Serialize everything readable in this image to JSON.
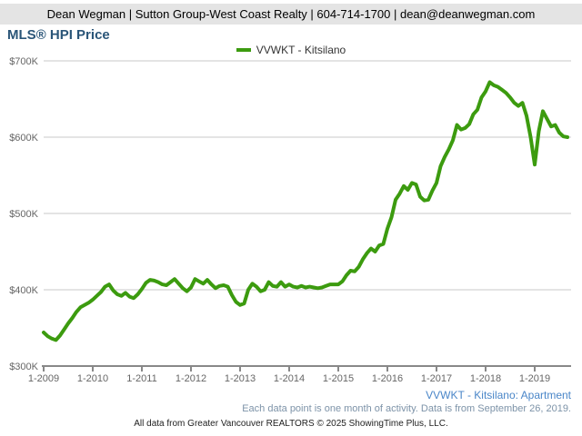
{
  "header": {
    "contact_line": "Dean Wegman | Sutton Group-West Coast Realty | 604-714-1700 | dean@deanwegman.com",
    "title": "MLS® HPI Price"
  },
  "legend": {
    "label": "VVWKT - Kitsilano"
  },
  "footer": {
    "series_label": "VVWKT - Kitsilano: Apartment",
    "note": "Each data point is one month of activity. Data is from September 26, 2019.",
    "attribution": "All data from Greater Vancouver REALTORS © 2025 ShowingTime Plus, LLC."
  },
  "colors": {
    "line": "#3c9b0f",
    "gridline": "#c9c9c9",
    "axis": "#888888",
    "tick_label": "#666666",
    "title": "#2a5578",
    "series_label": "#4a86c8",
    "note": "#7d93a8",
    "header_bg": "#e4e4e4"
  },
  "chart_data": {
    "type": "line",
    "title": "MLS® HPI Price",
    "series_name": "VVWKT - Kitsilano",
    "unit": "CAD thousands",
    "start_month": "2009-01",
    "end_month": "2019-09",
    "months_per_point": 1,
    "ylim": [
      300,
      700
    ],
    "y_ticks": [
      300,
      400,
      500,
      600,
      700
    ],
    "y_tick_labels": [
      "$300K",
      "$400K",
      "$500K",
      "$600K",
      "$700K"
    ],
    "x_tick_labels": [
      "1-2009",
      "1-2010",
      "1-2011",
      "1-2012",
      "1-2013",
      "1-2014",
      "1-2015",
      "1-2016",
      "1-2017",
      "1-2018",
      "1-2019"
    ],
    "grid": "horizontal-only",
    "legend_position": "top-center",
    "values": [
      344,
      339,
      336,
      334,
      340,
      348,
      356,
      363,
      371,
      377,
      380,
      383,
      387,
      392,
      397,
      404,
      407,
      399,
      394,
      392,
      396,
      391,
      389,
      394,
      401,
      409,
      413,
      412,
      410,
      407,
      406,
      410,
      414,
      408,
      402,
      398,
      403,
      414,
      411,
      408,
      413,
      407,
      402,
      405,
      406,
      404,
      393,
      384,
      380,
      382,
      400,
      408,
      404,
      398,
      400,
      410,
      405,
      404,
      410,
      404,
      407,
      404,
      403,
      405,
      403,
      404,
      403,
      402,
      403,
      405,
      407,
      407,
      407,
      411,
      419,
      425,
      424,
      430,
      440,
      448,
      454,
      450,
      458,
      460,
      480,
      495,
      518,
      526,
      536,
      531,
      540,
      538,
      522,
      517,
      518,
      530,
      540,
      562,
      574,
      584,
      596,
      616,
      610,
      612,
      617,
      630,
      636,
      652,
      660,
      672,
      668,
      666,
      662,
      658,
      652,
      645,
      641,
      645,
      628,
      600,
      564,
      608,
      634,
      624,
      614,
      616,
      606,
      601,
      600
    ]
  }
}
